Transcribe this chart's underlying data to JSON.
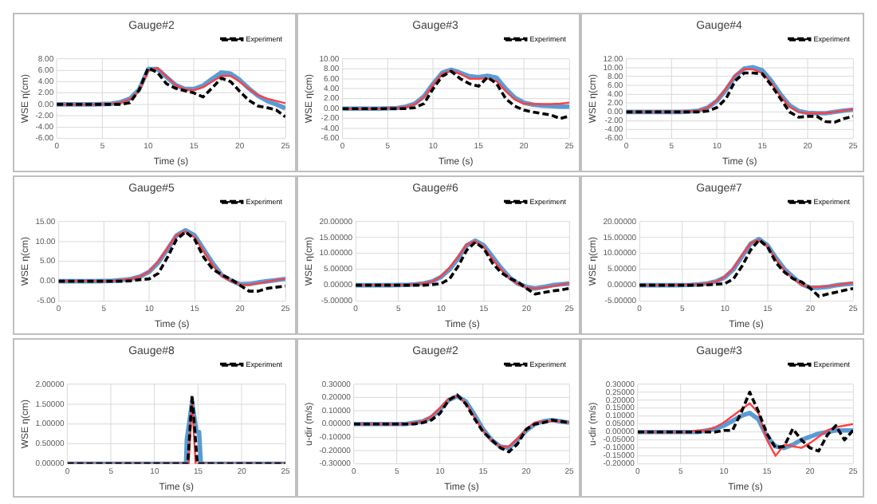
{
  "chart_data": [
    {
      "type": "line",
      "title": "Gauge#2",
      "xlabel": "Time (s)",
      "ylabel": "WSE η(cm)",
      "legend": "top right",
      "grid": true,
      "marker": "none",
      "xlim": [
        0,
        25
      ],
      "xticks": [
        0,
        5,
        10,
        15,
        20,
        25
      ],
      "ylim": [
        -6,
        8
      ],
      "yticks": [
        {
          "value": -6,
          "label": "-6.00"
        },
        {
          "value": -4,
          "label": "-4.00"
        },
        {
          "value": -2,
          "label": "-2.00"
        },
        {
          "value": 0,
          "label": "0.00"
        },
        {
          "value": 2,
          "label": "2.00"
        },
        {
          "value": 4,
          "label": "4.00"
        },
        {
          "value": 6,
          "label": "6.00"
        },
        {
          "value": 8,
          "label": "8.00"
        }
      ],
      "x": [
        0,
        2,
        4,
        6,
        7,
        8,
        9,
        10,
        11,
        12,
        13,
        14,
        15,
        16,
        17,
        18,
        19,
        20,
        21,
        22,
        23,
        24,
        25
      ],
      "series": [
        {
          "color": "#5b9bd5",
          "line_style": "solid",
          "values": [
            0,
            0,
            0,
            0.1,
            0.4,
            1,
            2.6,
            6.2,
            6.2,
            4.8,
            3.4,
            2.7,
            2.7,
            3.3,
            4.5,
            5.6,
            5.4,
            4.3,
            2.8,
            1.5,
            0.6,
            0,
            -0.7
          ]
        },
        {
          "color": "#ff4040",
          "line_style": "solid",
          "values": [
            0,
            0,
            0,
            0.1,
            0.3,
            0.9,
            2.3,
            5.9,
            6.4,
            4.9,
            3.4,
            2.6,
            2.5,
            3,
            4,
            5,
            5,
            4,
            2.7,
            1.6,
            1,
            0.6,
            0.2
          ]
        },
        {
          "name": "Experiment",
          "color": "#000000",
          "line_style": "dashed",
          "values": [
            0,
            0,
            0,
            0,
            0,
            0.3,
            2.5,
            6.4,
            5.6,
            3.6,
            2.8,
            2.4,
            2,
            1.3,
            2.9,
            4.6,
            4,
            2.3,
            0.7,
            -0.3,
            -0.6,
            -1,
            -2.2
          ]
        }
      ]
    },
    {
      "type": "line",
      "title": "Gauge#3",
      "xlabel": "Time (s)",
      "ylabel": "WSE η(cm)",
      "legend": "top right",
      "grid": true,
      "marker": "none",
      "xlim": [
        0,
        25
      ],
      "xticks": [
        0,
        5,
        10,
        15,
        20,
        25
      ],
      "ylim": [
        -6,
        10
      ],
      "yticks": [
        {
          "value": -6,
          "label": "-6.00"
        },
        {
          "value": -4,
          "label": "-4.00"
        },
        {
          "value": -2,
          "label": "-2.00"
        },
        {
          "value": 0,
          "label": "0.00"
        },
        {
          "value": 2,
          "label": "2.00"
        },
        {
          "value": 4,
          "label": "4.00"
        },
        {
          "value": 6,
          "label": "6.00"
        },
        {
          "value": 8,
          "label": "8.00"
        },
        {
          "value": 10,
          "label": "10.00"
        }
      ],
      "x": [
        0,
        2,
        4,
        6,
        7,
        8,
        9,
        10,
        11,
        12,
        13,
        14,
        15,
        16,
        17,
        18,
        19,
        20,
        21,
        22,
        23,
        24,
        25
      ],
      "series": [
        {
          "color": "#5b9bd5",
          "line_style": "solid",
          "values": [
            0,
            0,
            0,
            0.1,
            0.4,
            1,
            2.5,
            5,
            7.2,
            7.8,
            7.2,
            6.5,
            6.3,
            6.6,
            6.2,
            4,
            2.2,
            1.2,
            0.8,
            0.6,
            0.5,
            0.4,
            0.4
          ]
        },
        {
          "color": "#ff4040",
          "line_style": "solid",
          "values": [
            0,
            0,
            0,
            0.1,
            0.3,
            0.9,
            2.3,
            4.8,
            7,
            7.6,
            7,
            6,
            6,
            6.1,
            5.5,
            3.5,
            1.8,
            1,
            0.9,
            0.9,
            0.9,
            1,
            1.2
          ]
        },
        {
          "name": "Experiment",
          "color": "#000000",
          "line_style": "dashed",
          "values": [
            0,
            0,
            0,
            0,
            0,
            0.2,
            1,
            4,
            6.5,
            7.5,
            6,
            5,
            4.5,
            6.3,
            5,
            2,
            0.5,
            -0.3,
            -0.7,
            -1,
            -1.3,
            -2,
            -1.5
          ]
        }
      ]
    },
    {
      "type": "line",
      "title": "Gauge#4",
      "xlabel": "Time (s)",
      "ylabel": "WSE η(cm)",
      "legend": "top right",
      "grid": true,
      "marker": "none",
      "xlim": [
        0,
        25
      ],
      "xticks": [
        0,
        5,
        10,
        15,
        20,
        25
      ],
      "ylim": [
        -6,
        12
      ],
      "yticks": [
        {
          "value": -6,
          "label": "-6.00"
        },
        {
          "value": -4,
          "label": "-4.00"
        },
        {
          "value": -2,
          "label": "-2.00"
        },
        {
          "value": 0,
          "label": "0.00"
        },
        {
          "value": 2,
          "label": "2.00"
        },
        {
          "value": 4,
          "label": "4.00"
        },
        {
          "value": 6,
          "label": "6.00"
        },
        {
          "value": 8,
          "label": "8.00"
        },
        {
          "value": 10,
          "label": "10.00"
        },
        {
          "value": 12,
          "label": "12.00"
        }
      ],
      "x": [
        0,
        2,
        4,
        6,
        7,
        8,
        9,
        10,
        11,
        12,
        13,
        14,
        15,
        16,
        17,
        18,
        19,
        20,
        21,
        22,
        23,
        24,
        25
      ],
      "series": [
        {
          "color": "#5b9bd5",
          "line_style": "solid",
          "values": [
            0,
            0,
            0,
            0,
            0.1,
            0.3,
            1,
            2.5,
            5,
            8,
            9.8,
            10.1,
            9.4,
            7,
            4,
            1.5,
            0.2,
            -0.2,
            -0.3,
            -0.3,
            0,
            0.3,
            0.5
          ]
        },
        {
          "color": "#ff4040",
          "line_style": "solid",
          "values": [
            0,
            0,
            0,
            0,
            0.1,
            0.3,
            1,
            2.6,
            5.3,
            8.3,
            9.7,
            9.6,
            8.8,
            6.5,
            3.6,
            1.2,
            0,
            -0.3,
            -0.3,
            -0.2,
            0,
            0.3,
            0.6
          ]
        },
        {
          "name": "Experiment",
          "color": "#000000",
          "line_style": "dashed",
          "values": [
            0,
            0,
            0,
            0,
            0,
            0,
            0.2,
            1,
            3,
            7,
            8.8,
            8.8,
            8.6,
            6,
            3,
            0,
            -1.2,
            -1,
            -1,
            -2.2,
            -2.3,
            -1.5,
            -1
          ]
        }
      ]
    },
    {
      "type": "line",
      "title": "Gauge#5",
      "xlabel": "Time (s)",
      "ylabel": "WSE η(cm)",
      "legend": "top right",
      "grid": true,
      "marker": "none",
      "xlim": [
        0,
        25
      ],
      "xticks": [
        0,
        5,
        10,
        15,
        20,
        25
      ],
      "ylim": [
        -5,
        15
      ],
      "yticks": [
        {
          "value": -5,
          "label": "-5.00"
        },
        {
          "value": 0,
          "label": "0.00"
        },
        {
          "value": 5,
          "label": "5.00"
        },
        {
          "value": 10,
          "label": "10.00"
        },
        {
          "value": 15,
          "label": "15.00"
        }
      ],
      "x": [
        0,
        2,
        4,
        6,
        7,
        8,
        9,
        10,
        11,
        12,
        13,
        14,
        15,
        16,
        17,
        18,
        19,
        20,
        21,
        22,
        23,
        24,
        25
      ],
      "series": [
        {
          "color": "#5b9bd5",
          "line_style": "solid",
          "values": [
            0,
            0,
            0,
            0.1,
            0.3,
            0.6,
            1.2,
            2.4,
            4.7,
            8,
            11.5,
            12.8,
            11.5,
            8,
            4.5,
            1.5,
            0.2,
            -0.8,
            -0.7,
            -0.3,
            0,
            0.3,
            0.6
          ]
        },
        {
          "color": "#ff4040",
          "line_style": "solid",
          "values": [
            0,
            0,
            0,
            0.1,
            0.3,
            0.6,
            1.2,
            2.5,
            5,
            8.3,
            11.6,
            12.5,
            11,
            7.5,
            4,
            1.3,
            0,
            -0.8,
            -0.9,
            -0.5,
            -0.1,
            0.3,
            0.6
          ]
        },
        {
          "name": "Experiment",
          "color": "#000000",
          "line_style": "dashed",
          "values": [
            0,
            0,
            0,
            0,
            0,
            0.1,
            0.4,
            0.6,
            2,
            6,
            10.5,
            12.4,
            10.5,
            6,
            3,
            1.6,
            0.5,
            -1,
            -2.5,
            -2.5,
            -1.8,
            -1.5,
            -1.2
          ]
        }
      ]
    },
    {
      "type": "line",
      "title": "Gauge#6",
      "xlabel": "Time (s)",
      "ylabel": "WSE η(cm)",
      "legend": "top right",
      "grid": true,
      "marker": "none",
      "xlim": [
        0,
        25
      ],
      "xticks": [
        0,
        5,
        10,
        15,
        20,
        25
      ],
      "ylim": [
        -5,
        20
      ],
      "yticks": [
        {
          "value": -5,
          "label": "-5.00000"
        },
        {
          "value": 0,
          "label": "0.00000"
        },
        {
          "value": 5,
          "label": "5.00000"
        },
        {
          "value": 10,
          "label": "10.00000"
        },
        {
          "value": 15,
          "label": "15.00000"
        },
        {
          "value": 20,
          "label": "20.00000"
        }
      ],
      "x": [
        0,
        2,
        4,
        6,
        7,
        8,
        9,
        10,
        11,
        12,
        13,
        14,
        15,
        16,
        17,
        18,
        19,
        20,
        21,
        22,
        23,
        24,
        25
      ],
      "series": [
        {
          "color": "#5b9bd5",
          "line_style": "solid",
          "values": [
            0,
            0,
            0,
            0.1,
            0.3,
            0.6,
            1.2,
            2.6,
            5,
            8.5,
            12.5,
            14,
            12.5,
            9,
            5.5,
            2.5,
            0.5,
            -0.5,
            -1,
            -0.5,
            0,
            0.3,
            0.5
          ]
        },
        {
          "color": "#ff4040",
          "line_style": "solid",
          "values": [
            0,
            0,
            0,
            0.1,
            0.3,
            0.6,
            1.2,
            2.8,
            5.5,
            9,
            12.8,
            13.8,
            12,
            8.3,
            5,
            2.2,
            0.3,
            -0.8,
            -1,
            -0.8,
            -0.3,
            0.2,
            0.6
          ]
        },
        {
          "name": "Experiment",
          "color": "#000000",
          "line_style": "dashed",
          "values": [
            0,
            0,
            0,
            0,
            0,
            0,
            0.2,
            0.5,
            2,
            6,
            11,
            13.5,
            11.5,
            7,
            4,
            2.2,
            1,
            -1,
            -2.8,
            -2.3,
            -1.8,
            -1.5,
            -1
          ]
        }
      ]
    },
    {
      "type": "line",
      "title": "Gauge#7",
      "xlabel": "Time (s)",
      "ylabel": "WSE η(cm)",
      "legend": "top right",
      "grid": true,
      "marker": "none",
      "xlim": [
        0,
        25
      ],
      "xticks": [
        0,
        5,
        10,
        15,
        20,
        25
      ],
      "ylim": [
        -5,
        20
      ],
      "yticks": [
        {
          "value": -5,
          "label": "-5.00000"
        },
        {
          "value": 0,
          "label": "0.00000"
        },
        {
          "value": 5,
          "label": "5.00000"
        },
        {
          "value": 10,
          "label": "10.00000"
        },
        {
          "value": 15,
          "label": "15.00000"
        },
        {
          "value": 20,
          "label": "20.00000"
        }
      ],
      "x": [
        0,
        2,
        4,
        6,
        7,
        8,
        9,
        10,
        11,
        12,
        13,
        14,
        15,
        16,
        17,
        18,
        19,
        20,
        21,
        22,
        23,
        24,
        25
      ],
      "series": [
        {
          "color": "#5b9bd5",
          "line_style": "solid",
          "values": [
            0,
            0,
            0,
            0.1,
            0.3,
            0.6,
            1.2,
            2.5,
            5,
            9,
            13,
            14.5,
            12.5,
            8.5,
            5,
            2.5,
            0.3,
            -0.8,
            -0.8,
            -0.5,
            0,
            0.3,
            0.5
          ]
        },
        {
          "color": "#ff4040",
          "line_style": "solid",
          "values": [
            0,
            0,
            0.1,
            0.2,
            0.3,
            0.6,
            1.2,
            2.7,
            5.4,
            9.4,
            13.2,
            14.2,
            12.2,
            8,
            4.5,
            2,
            0,
            -0.6,
            -0.5,
            -0.3,
            0,
            0.4,
            0.8
          ]
        },
        {
          "name": "Experiment",
          "color": "#000000",
          "line_style": "dashed",
          "values": [
            0,
            0,
            0,
            0,
            0,
            0.1,
            0.3,
            0.5,
            2,
            6,
            11,
            14.2,
            12,
            7,
            4,
            2,
            1,
            -1,
            -3.5,
            -2.8,
            -2.2,
            -1.6,
            -1
          ]
        }
      ]
    },
    {
      "type": "line",
      "title": "Gauge#8",
      "xlabel": "Time (s)",
      "ylabel": "WSE η(cm)",
      "legend": "top right",
      "grid": true,
      "marker": "none",
      "xlim": [
        0,
        25
      ],
      "xticks": [
        0,
        5,
        10,
        15,
        20,
        25
      ],
      "ylim": [
        0,
        2
      ],
      "yticks": [
        {
          "value": 0,
          "label": "0.00000"
        },
        {
          "value": 0.5,
          "label": "0.50000"
        },
        {
          "value": 1,
          "label": "1.00000"
        },
        {
          "value": 1.5,
          "label": "1.50000"
        },
        {
          "value": 2,
          "label": "2.00000"
        }
      ],
      "series": [
        {
          "color": "#5b9bd5",
          "line_style": "solid",
          "x": [
            0,
            13.6,
            13.7,
            14.3,
            14.8,
            15.1,
            15.3,
            25
          ],
          "values": [
            0,
            0,
            0.62,
            1.55,
            0.8,
            0.8,
            0,
            0
          ]
        },
        {
          "color": "#ff4040",
          "line_style": "solid",
          "x": [
            0,
            13.9,
            14.3,
            14.7,
            25
          ],
          "values": [
            0,
            0,
            1.55,
            0,
            0
          ]
        },
        {
          "name": "Experiment",
          "color": "#000000",
          "line_style": "dashed",
          "x": [
            0,
            13.8,
            14.3,
            14.9,
            25
          ],
          "values": [
            0,
            0,
            1.72,
            0,
            0
          ]
        }
      ]
    },
    {
      "type": "line",
      "title": "Gauge#2",
      "xlabel": "Time (s)",
      "ylabel": "u-dir (m/s)",
      "legend": "top right",
      "grid": true,
      "marker": "none",
      "xlim": [
        0,
        25
      ],
      "xticks": [
        0,
        5,
        10,
        15,
        20,
        25
      ],
      "ylim": [
        -0.3,
        0.3
      ],
      "yticks": [
        {
          "value": -0.3,
          "label": "-0.30000"
        },
        {
          "value": -0.2,
          "label": "-0.20000"
        },
        {
          "value": -0.1,
          "label": "-0.10000"
        },
        {
          "value": 0,
          "label": "0.00000"
        },
        {
          "value": 0.1,
          "label": "0.10000"
        },
        {
          "value": 0.2,
          "label": "0.20000"
        },
        {
          "value": 0.3,
          "label": "0.30000"
        }
      ],
      "x": [
        0,
        2,
        4,
        6,
        7,
        8,
        9,
        10,
        11,
        12,
        13,
        14,
        15,
        16,
        17,
        18,
        19,
        20,
        21,
        22,
        23,
        24,
        25
      ],
      "series": [
        {
          "color": "#5b9bd5",
          "line_style": "solid",
          "values": [
            0,
            0,
            0,
            0,
            0.01,
            0.02,
            0.05,
            0.11,
            0.18,
            0.21,
            0.17,
            0.07,
            -0.04,
            -0.12,
            -0.17,
            -0.18,
            -0.12,
            -0.05,
            0,
            0.02,
            0.03,
            0.02,
            0.01
          ]
        },
        {
          "color": "#ff4040",
          "line_style": "solid",
          "values": [
            0,
            0,
            0,
            0,
            0.01,
            0.02,
            0.06,
            0.12,
            0.19,
            0.21,
            0.16,
            0.05,
            -0.05,
            -0.13,
            -0.17,
            -0.17,
            -0.11,
            -0.04,
            0.01,
            0.02,
            0.02,
            0.02,
            0.01
          ]
        },
        {
          "name": "Experiment",
          "color": "#000000",
          "line_style": "dashed",
          "values": [
            0,
            0,
            0,
            0,
            0,
            0.01,
            0.03,
            0.08,
            0.18,
            0.22,
            0.15,
            0.04,
            -0.06,
            -0.12,
            -0.18,
            -0.21,
            -0.15,
            -0.04,
            0,
            0.01,
            0.03,
            0.02,
            0.01
          ]
        }
      ]
    },
    {
      "type": "line",
      "title": "Gauge#3",
      "xlabel": "Time (s)",
      "ylabel": "u-dir (m/s)",
      "legend": "top right",
      "grid": true,
      "marker": "none",
      "xlim": [
        0,
        25
      ],
      "xticks": [
        0,
        5,
        10,
        15,
        20,
        25
      ],
      "ylim": [
        -0.2,
        0.3
      ],
      "yticks": [
        {
          "value": -0.2,
          "label": "-0.20000"
        },
        {
          "value": -0.15,
          "label": "-0.15000"
        },
        {
          "value": -0.1,
          "label": "-0.10000"
        },
        {
          "value": -0.05,
          "label": "-0.05000"
        },
        {
          "value": 0,
          "label": "0.00000"
        },
        {
          "value": 0.05,
          "label": "0.05000"
        },
        {
          "value": 0.1,
          "label": "0.10000"
        },
        {
          "value": 0.15,
          "label": "0.15000"
        },
        {
          "value": 0.2,
          "label": "0.20000"
        },
        {
          "value": 0.25,
          "label": "0.25000"
        },
        {
          "value": 0.3,
          "label": "0.30000"
        }
      ],
      "x": [
        0,
        2,
        4,
        6,
        7,
        8,
        9,
        10,
        11,
        12,
        13,
        14,
        15,
        16,
        17,
        18,
        19,
        20,
        21,
        22,
        23,
        24,
        25
      ],
      "series": [
        {
          "color": "#5b9bd5",
          "line_style": "solid",
          "values": [
            0,
            0,
            0,
            0,
            0,
            0.01,
            0.02,
            0.04,
            0.07,
            0.1,
            0.12,
            0.08,
            -0.03,
            -0.09,
            -0.1,
            -0.08,
            -0.05,
            -0.03,
            -0.01,
            0,
            0.01,
            0.01,
            0.01
          ]
        },
        {
          "color": "#ff4040",
          "line_style": "solid",
          "values": [
            0,
            0,
            0,
            0,
            0.01,
            0.01,
            0.03,
            0.06,
            0.1,
            0.14,
            0.18,
            0.12,
            -0.05,
            -0.15,
            -0.08,
            -0.09,
            -0.1,
            -0.07,
            -0.03,
            0.01,
            0.03,
            0.04,
            0.05
          ]
        },
        {
          "name": "Experiment",
          "color": "#000000",
          "line_style": "dashed",
          "values": [
            0,
            0,
            0,
            0,
            0,
            0,
            0,
            0.01,
            0.01,
            0.12,
            0.25,
            0.13,
            -0.01,
            -0.1,
            -0.09,
            0.02,
            -0.05,
            -0.1,
            -0.12,
            -0.02,
            0.04,
            -0.05,
            0.01
          ]
        }
      ]
    }
  ]
}
